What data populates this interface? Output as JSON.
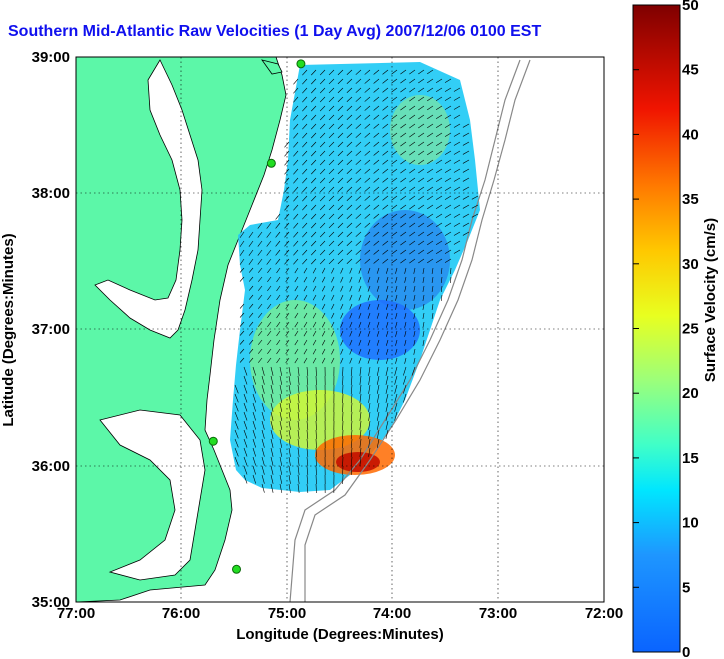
{
  "title": "Southern Mid-Atlantic Raw Velocities (1 Day Avg) 2007/12/06 0100 EST",
  "map": {
    "xlabel": "Longitude (Degrees:Minutes)",
    "ylabel": "Latitude (Degrees:Minutes)",
    "x_ticks": [
      "77:00",
      "76:00",
      "75:00",
      "74:00",
      "73:00",
      "72:00"
    ],
    "y_ticks": [
      "39:00",
      "38:00",
      "37:00",
      "36:00",
      "35:00"
    ],
    "lon_range": [
      -77,
      -72
    ],
    "lat_range": [
      35,
      39
    ],
    "grid": true,
    "land_color": "#5cf7a8",
    "stations": [
      {
        "lon": -74.87,
        "lat": 38.95
      },
      {
        "lon": -75.15,
        "lat": 38.22
      },
      {
        "lon": -75.7,
        "lat": 36.18
      },
      {
        "lon": -75.48,
        "lat": 35.24
      }
    ]
  },
  "colorbar": {
    "label": "Surface Velocity (cm/s)",
    "ticks": [
      "0",
      "5",
      "10",
      "15",
      "20",
      "25",
      "30",
      "35",
      "40",
      "45",
      "50"
    ],
    "range": [
      0,
      50
    ],
    "colormap": "jet"
  }
}
